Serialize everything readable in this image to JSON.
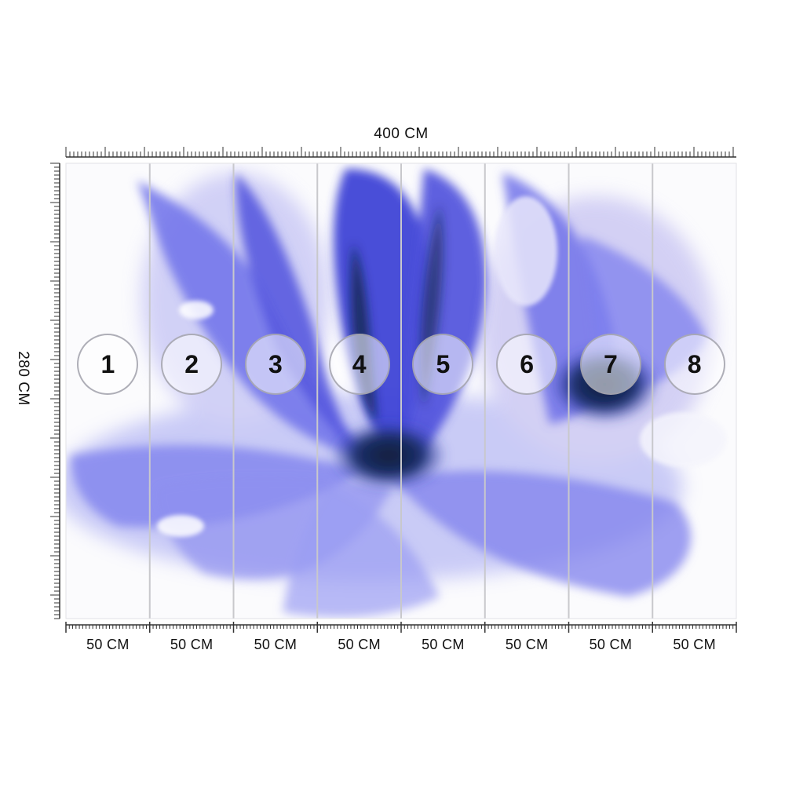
{
  "total_width": "400 CM",
  "total_height": "280 CM",
  "panels": [
    {
      "number": "1",
      "width": "50 CM"
    },
    {
      "number": "2",
      "width": "50 CM"
    },
    {
      "number": "3",
      "width": "50 CM"
    },
    {
      "number": "4",
      "width": "50 CM"
    },
    {
      "number": "5",
      "width": "50 CM"
    },
    {
      "number": "6",
      "width": "50 CM"
    },
    {
      "number": "7",
      "width": "50 CM"
    },
    {
      "number": "8",
      "width": "50 CM"
    }
  ],
  "colors": {
    "flower_primary": "#5a5ee6",
    "flower_light": "#b7b9f5",
    "flower_dark": "#13284a",
    "ruler": "#333333",
    "panel_divider": "#c8c8cc"
  }
}
